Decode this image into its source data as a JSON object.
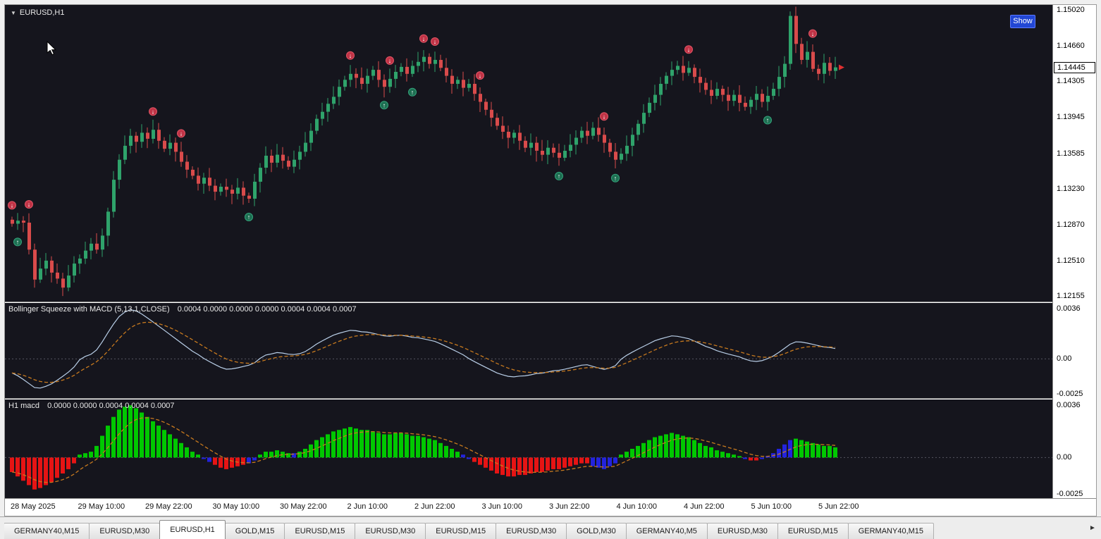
{
  "window": {
    "symbol": "EURUSD,H1",
    "dropdown_icon": "▼",
    "show_button": "Show",
    "current_price": "1.14445"
  },
  "panels": {
    "squeeze": {
      "title": "Bollinger Squeeze with MACD (5,13,1,CLOSE)",
      "values": "0.0004 0.0000 0.0000 0.0000 0.0004 0.0004 0.0007",
      "scale_max": "0.0036",
      "scale_zero": "0.00",
      "scale_min": "-0.0025"
    },
    "macd": {
      "title": "H1 macd",
      "values": "0.0000 0.0000 0.0004 0.0004 0.0007",
      "scale_max": "0.0036",
      "scale_zero": "0.00",
      "scale_min": "-0.0025"
    }
  },
  "time_axis": [
    "28 May 2025",
    "29 May 10:00",
    "29 May 22:00",
    "30 May 10:00",
    "30 May 22:00",
    "2 Jun 10:00",
    "2 Jun 22:00",
    "3 Jun 10:00",
    "3 Jun 22:00",
    "4 Jun 10:00",
    "4 Jun 22:00",
    "5 Jun 10:00",
    "5 Jun 22:00"
  ],
  "tab_bar": {
    "scroll_icon": "►",
    "tabs": [
      {
        "label": "GERMANY40,M15",
        "active": false
      },
      {
        "label": "EURUSD,M30",
        "active": false
      },
      {
        "label": "EURUSD,H1",
        "active": true
      },
      {
        "label": "GOLD,M15",
        "active": false
      },
      {
        "label": "EURUSD,M15",
        "active": false
      },
      {
        "label": "EURUSD,M30",
        "active": false
      },
      {
        "label": "EURUSD,M15",
        "active": false
      },
      {
        "label": "EURUSD,M30",
        "active": false
      },
      {
        "label": "GOLD,M30",
        "active": false
      },
      {
        "label": "GERMANY40,M5",
        "active": false
      },
      {
        "label": "EURUSD,M30",
        "active": false
      },
      {
        "label": "EURUSD,M15",
        "active": false
      },
      {
        "label": "GERMANY40,M15",
        "active": false
      }
    ]
  },
  "colors": {
    "chart_background": "#15151d",
    "candle_up": "#2fa36b",
    "candle_down": "#d94b4b",
    "macd_up": "#00c800",
    "macd_down": "#e61414",
    "macd_neutral": "#2323dd",
    "signal_line": "#c87a1e",
    "squeeze_line": "#b9cfe8",
    "up_marker": "#1d6f52",
    "down_marker": "#c03346",
    "show_button_bg": "#2247d4"
  },
  "chart_data": {
    "type": "candlestick",
    "symbol": "EURUSD",
    "timeframe": "H1",
    "current_price": 1.14445,
    "price_axis": {
      "min": 1.121,
      "max": 1.1507,
      "ticks": [
        "1.15020",
        "1.14660",
        "1.14305",
        "1.13945",
        "1.13585",
        "1.13230",
        "1.12870",
        "1.12510",
        "1.12155"
      ]
    },
    "closes": [
      1.1288,
      1.1291,
      1.1289,
      1.1262,
      1.1232,
      1.1243,
      1.1251,
      1.1239,
      1.1233,
      1.1224,
      1.1236,
      1.1248,
      1.1253,
      1.1261,
      1.1268,
      1.1262,
      1.1276,
      1.13,
      1.1332,
      1.1352,
      1.1366,
      1.1376,
      1.137,
      1.1379,
      1.1373,
      1.1382,
      1.1371,
      1.1363,
      1.1369,
      1.136,
      1.135,
      1.1342,
      1.1336,
      1.1328,
      1.1334,
      1.1326,
      1.132,
      1.1325,
      1.1322,
      1.1318,
      1.1324,
      1.1316,
      1.1313,
      1.133,
      1.1344,
      1.1356,
      1.1349,
      1.1357,
      1.1351,
      1.1345,
      1.1352,
      1.136,
      1.1369,
      1.1381,
      1.1393,
      1.14,
      1.1408,
      1.1415,
      1.1425,
      1.1432,
      1.1438,
      1.1434,
      1.1428,
      1.1436,
      1.1442,
      1.1432,
      1.1425,
      1.1433,
      1.144,
      1.1445,
      1.1438,
      1.1446,
      1.145,
      1.1455,
      1.1448,
      1.1452,
      1.1444,
      1.1436,
      1.1428,
      1.1432,
      1.1424,
      1.1428,
      1.1418,
      1.141,
      1.1402,
      1.1394,
      1.1386,
      1.138,
      1.1374,
      1.1379,
      1.1371,
      1.1364,
      1.1369,
      1.1361,
      1.1357,
      1.1364,
      1.1359,
      1.1354,
      1.1361,
      1.1367,
      1.1374,
      1.1381,
      1.1376,
      1.1384,
      1.1377,
      1.1369,
      1.136,
      1.1352,
      1.1358,
      1.1366,
      1.1377,
      1.1388,
      1.1399,
      1.1409,
      1.1417,
      1.1428,
      1.1436,
      1.1442,
      1.1446,
      1.1439,
      1.1444,
      1.1435,
      1.1429,
      1.1422,
      1.1416,
      1.1423,
      1.1417,
      1.1411,
      1.1417,
      1.1409,
      1.1405,
      1.1412,
      1.1418,
      1.141,
      1.1416,
      1.1423,
      1.1435,
      1.1448,
      1.1496,
      1.1468,
      1.1452,
      1.146,
      1.1443,
      1.1438,
      1.1449,
      1.1441,
      1.14445
    ],
    "markers": [
      {
        "i": 0,
        "t": "down"
      },
      {
        "i": 1,
        "t": "up"
      },
      {
        "i": 3,
        "t": "down"
      },
      {
        "i": 9,
        "t": "up"
      },
      {
        "i": 25,
        "t": "down"
      },
      {
        "i": 30,
        "t": "down"
      },
      {
        "i": 42,
        "t": "up"
      },
      {
        "i": 60,
        "t": "down"
      },
      {
        "i": 66,
        "t": "up"
      },
      {
        "i": 67,
        "t": "down"
      },
      {
        "i": 71,
        "t": "up"
      },
      {
        "i": 73,
        "t": "down"
      },
      {
        "i": 75,
        "t": "down"
      },
      {
        "i": 83,
        "t": "down"
      },
      {
        "i": 97,
        "t": "up"
      },
      {
        "i": 105,
        "t": "down"
      },
      {
        "i": 107,
        "t": "up"
      },
      {
        "i": 120,
        "t": "down"
      },
      {
        "i": 134,
        "t": "up"
      },
      {
        "i": 142,
        "t": "down"
      }
    ],
    "indicators": [
      {
        "name": "Bollinger Squeeze with MACD",
        "params": "5,13,1,CLOSE",
        "range": {
          "max": 0.0036,
          "min": -0.0025
        }
      },
      {
        "name": "H1 macd",
        "range": {
          "max": 0.0036,
          "min": -0.0025
        }
      }
    ],
    "macd": {
      "values": [
        -0.001,
        -0.0013,
        -0.0016,
        -0.0019,
        -0.0022,
        -0.0021,
        -0.0019,
        -0.0017,
        -0.0014,
        -0.0011,
        -0.0008,
        -0.0004,
        0.0002,
        0.0003,
        0.0004,
        0.0008,
        0.0015,
        0.0022,
        0.0028,
        0.0033,
        0.0035,
        0.0036,
        0.0034,
        0.0031,
        0.0028,
        0.0025,
        0.0022,
        0.0019,
        0.0016,
        0.0013,
        0.001,
        0.0007,
        0.0004,
        0.0002,
        -0.0001,
        -0.0003,
        -0.0005,
        -0.0007,
        -0.0008,
        -0.0007,
        -0.0006,
        -0.0005,
        -0.0004,
        -0.0002,
        0.0002,
        0.0004,
        0.0004,
        0.0005,
        0.0004,
        0.0003,
        0.0003,
        0.0004,
        0.0006,
        0.0009,
        0.0012,
        0.0014,
        0.0016,
        0.0018,
        0.0019,
        0.002,
        0.0021,
        0.002,
        0.0019,
        0.0019,
        0.0018,
        0.0017,
        0.0016,
        0.0016,
        0.0017,
        0.0017,
        0.0016,
        0.0015,
        0.0015,
        0.0014,
        0.0013,
        0.0012,
        0.001,
        0.0008,
        0.0006,
        0.0004,
        0.0002,
        -0.0001,
        -0.0003,
        -0.0005,
        -0.0007,
        -0.0009,
        -0.0011,
        -0.0012,
        -0.0013,
        -0.0013,
        -0.0012,
        -0.0012,
        -0.0011,
        -0.001,
        -0.001,
        -0.0009,
        -0.0008,
        -0.0008,
        -0.0007,
        -0.0006,
        -0.0005,
        -0.0004,
        -0.0004,
        -0.0006,
        -0.0007,
        -0.0008,
        -0.0006,
        -0.0004,
        0.0002,
        0.0004,
        0.0006,
        0.0008,
        0.001,
        0.0012,
        0.0014,
        0.0015,
        0.0016,
        0.0017,
        0.0016,
        0.0015,
        0.0014,
        0.0012,
        0.001,
        0.0008,
        0.0007,
        0.0005,
        0.0004,
        0.0003,
        0.0002,
        0.0001,
        -0.0001,
        -0.0002,
        -0.0002,
        -0.0001,
        0.0001,
        0.0003,
        0.0006,
        0.0009,
        0.0012,
        0.0013,
        0.0012,
        0.0011,
        0.001,
        0.0009,
        0.0008,
        0.0008,
        0.0007
      ],
      "color_runs": [
        [
          12,
          "r"
        ],
        [
          22,
          "g"
        ],
        [
          2,
          "b"
        ],
        [
          6,
          "r"
        ],
        [
          2,
          "b"
        ],
        [
          6,
          "g"
        ],
        [
          1,
          "b"
        ],
        [
          29,
          "g"
        ],
        [
          2,
          "b"
        ],
        [
          21,
          "r"
        ],
        [
          5,
          "b"
        ],
        [
          22,
          "g"
        ],
        [
          1,
          "b"
        ],
        [
          2,
          "r"
        ],
        [
          6,
          "b"
        ],
        [
          8,
          "g"
        ]
      ]
    }
  }
}
